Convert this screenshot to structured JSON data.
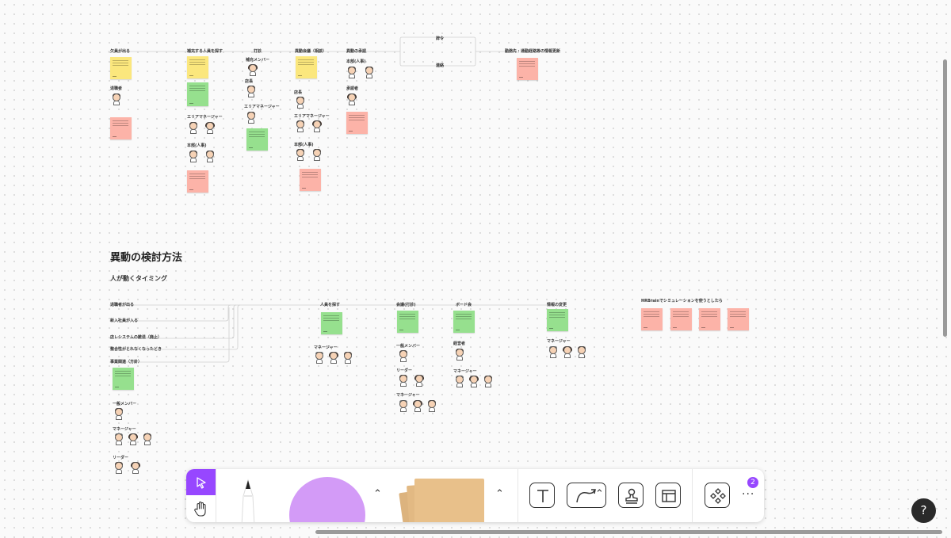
{
  "top_flow": {
    "col1": {
      "header": "欠員が出る",
      "label1": "退職者",
      "sticky1": "yellow",
      "sticky2": "pink"
    },
    "col2": {
      "header": "補充する人員を探す",
      "label1": "エリアマネージャー",
      "label2": "本部(人事)"
    },
    "col3": {
      "header": "打診",
      "label1": "補充メンバー",
      "label2": "店長",
      "label3": "エリアマネージャー"
    },
    "col4": {
      "header": "異動会議（相談）",
      "label1": "店長",
      "label2": "エリアマネージャー",
      "label3": "本部(人事)"
    },
    "col5": {
      "header": "異動の承認",
      "label1": "本部(人事)",
      "label2": "承認者"
    },
    "branch": {
      "upper": "辞令",
      "lower": "連絡"
    },
    "col6": {
      "header": "勤務先・通勤経路等の情報更新"
    }
  },
  "section": {
    "title": "異動の検討方法",
    "subtitle": "人が動くタイミング"
  },
  "timing": {
    "triggers": [
      "退職者が出る",
      "新入社員が入る",
      "店レシステムの撤退（廃止）",
      "整合性がとれなくなったとき",
      "事業関連（方針）"
    ],
    "left_labels": [
      "一般メンバー",
      "マネージャー",
      "リーダー"
    ],
    "col_search": {
      "header": "人員を探す",
      "label1": "マネージャー"
    },
    "col_meeting": {
      "header": "会議(打診)",
      "label1": "一般メンバー",
      "label2": "リーダー",
      "label3": "マネージャー"
    },
    "col_board": {
      "header": "ボード会",
      "label1": "経営者",
      "label2": "マネージャー"
    },
    "col_change": {
      "header": "情報の変更",
      "label1": "マネージャー"
    },
    "hrbrain": {
      "header": "HRBrainでシミュレーションを使うとしたら"
    }
  },
  "toolbar": {
    "select_icon": "pointer-icon",
    "hand_icon": "hand-icon",
    "tools": [
      "pen-tool",
      "shape-tool",
      "sticky-tool",
      "text-tool",
      "connector-tool",
      "stamp-tool",
      "section-tool",
      "component-tool"
    ],
    "badge_count": "2",
    "more_label": "···"
  },
  "help_label": "?",
  "colors": {
    "accent": "#9747ff",
    "yellow": "#fbe77d",
    "green": "#96e08e",
    "pink": "#fcb3a8"
  }
}
